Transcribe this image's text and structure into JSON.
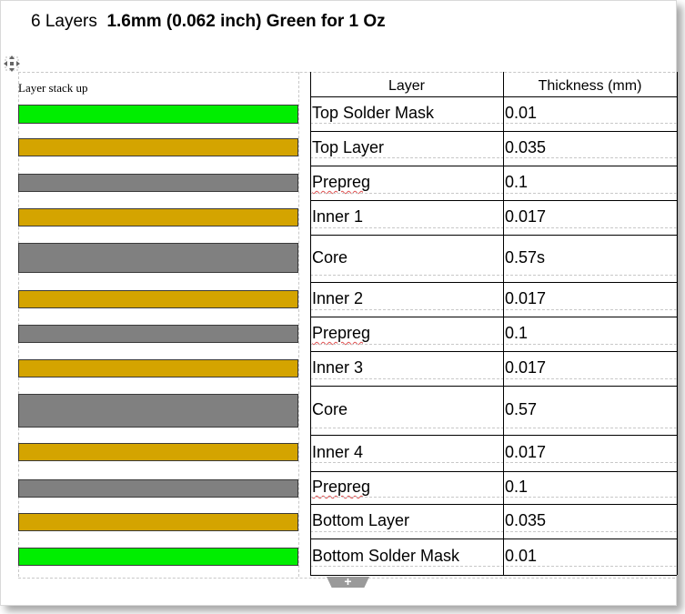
{
  "title": {
    "prefix": "6 Layers",
    "bold": "1.6mm (0.062 inch) Green for 1 Oz"
  },
  "stack_label": "Layer stack up",
  "table": {
    "headers": {
      "layer": "Layer",
      "thickness": "Thickness (mm)"
    },
    "rows": [
      {
        "layer": "Top Solder Mask",
        "thickness": "0.01",
        "color": "#00ee00"
      },
      {
        "layer": "Top Layer",
        "thickness": "0.035",
        "color": "#d4a400"
      },
      {
        "layer": "Prepreg",
        "thickness": "0.1",
        "color": "#808080"
      },
      {
        "layer": "Inner  1",
        "thickness": "0.017",
        "color": "#d4a400"
      },
      {
        "layer": "Core",
        "thickness": "0.57s",
        "color": "#808080"
      },
      {
        "layer": "Inner  2",
        "thickness": "0.017",
        "color": "#d4a400"
      },
      {
        "layer": "Prepreg",
        "thickness": "0.1",
        "color": "#808080"
      },
      {
        "layer": "Inner  3",
        "thickness": "0.017",
        "color": "#d4a400"
      },
      {
        "layer": "Core",
        "thickness": "0.57",
        "color": "#808080"
      },
      {
        "layer": "Inner 4",
        "thickness": "0.017",
        "color": "#d4a400"
      },
      {
        "layer": "Prepreg",
        "thickness": "0.1",
        "color": "#808080"
      },
      {
        "layer": "Bottom  Layer",
        "thickness": "0.035",
        "color": "#d4a400"
      },
      {
        "layer": "Bottom  Solder Mask",
        "thickness": "0.01",
        "color": "#00ee00"
      }
    ]
  },
  "add_row_symbol": "+",
  "icons": {
    "move": "move-arrows-icon"
  }
}
